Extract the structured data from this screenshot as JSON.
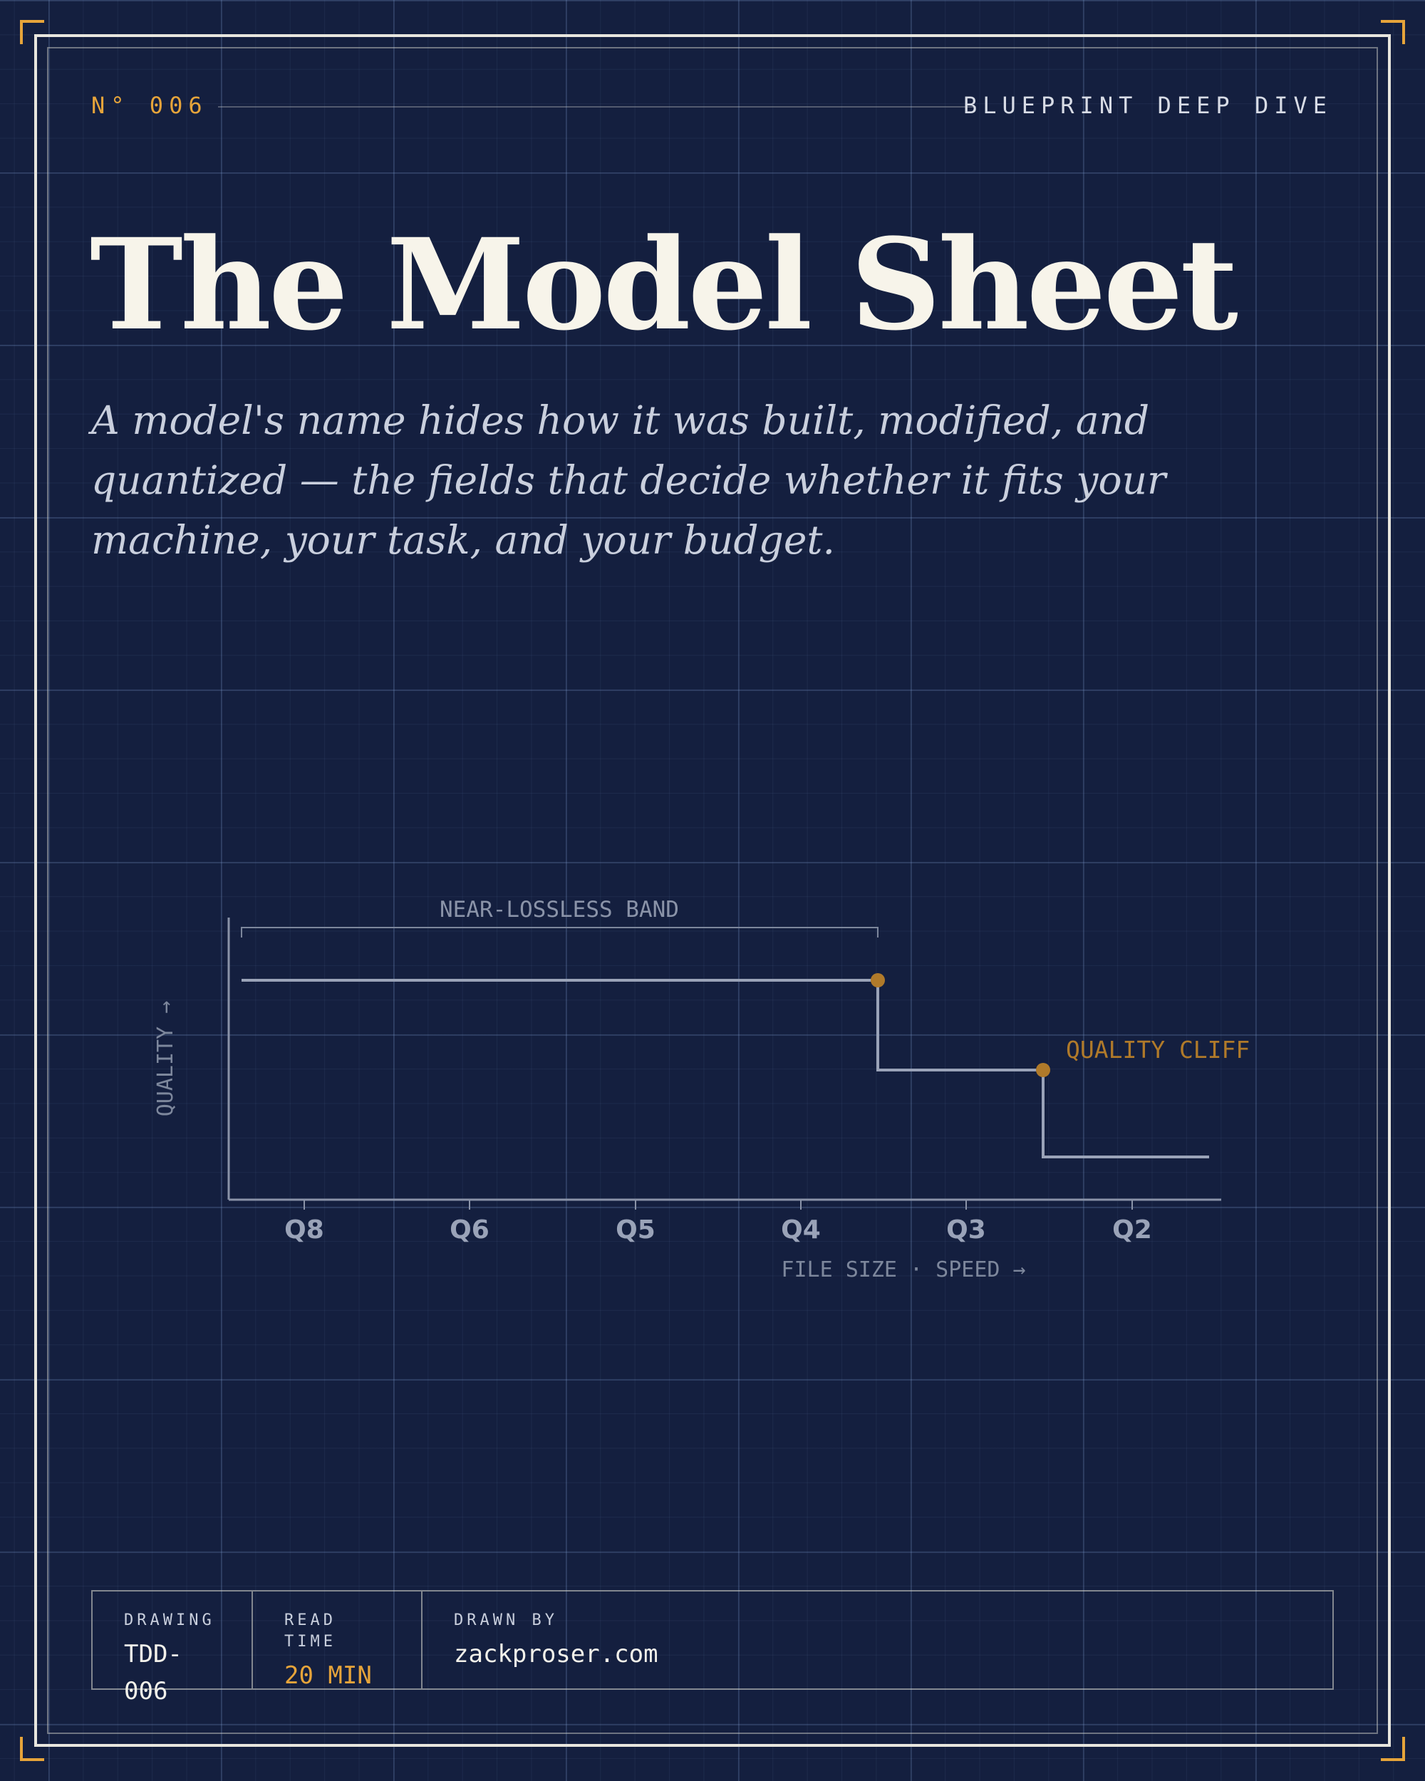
{
  "header": {
    "issue": "N° 006",
    "series": "BLUEPRINT DEEP DIVE"
  },
  "hero": {
    "title": "The Model Sheet",
    "subtitle": "A model's name hides how it was built, modified, and quantized — the fields that decide whether it fits your machine, your task, and your budget."
  },
  "diagram": {
    "band_label": "NEAR-LOSSLESS BAND",
    "cliff_label": "QUALITY CLIFF",
    "y_axis_label": "QUALITY →",
    "x_axis_label": "FILE SIZE · SPEED →",
    "ticks": [
      "Q8",
      "Q6",
      "Q5",
      "Q4",
      "Q3",
      "Q2"
    ],
    "colors": {
      "line": "#9aa3b8",
      "accent": "#b07a2a"
    }
  },
  "titleblock": {
    "drawing_label": "DRAWING",
    "drawing_value": "TDD-006",
    "read_label": "READ TIME",
    "read_value": "20 MIN",
    "drawn_label": "DRAWN BY",
    "drawn_value": "zackproser.com"
  }
}
